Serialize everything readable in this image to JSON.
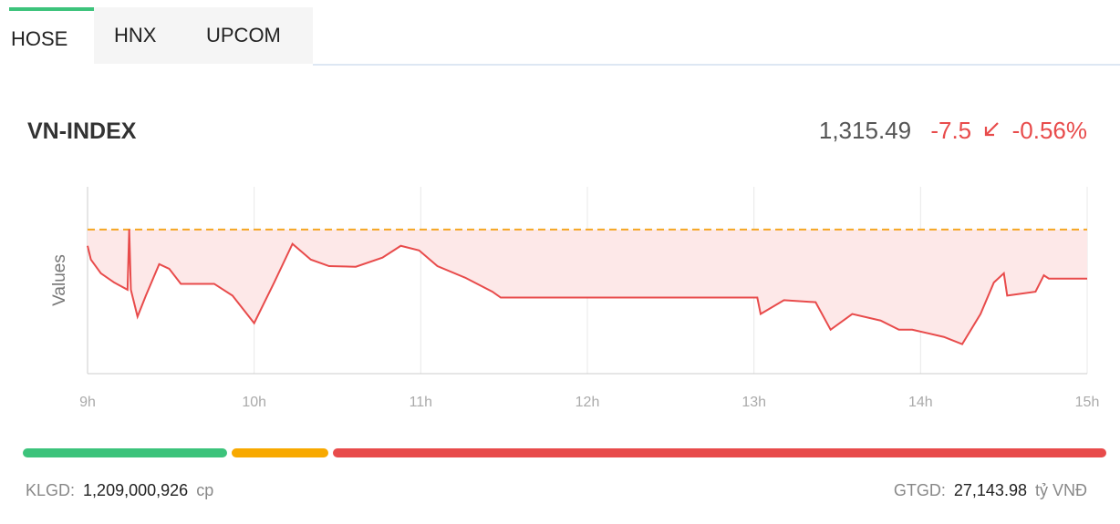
{
  "tabs": {
    "items": [
      "HOSE",
      "HNX",
      "UPCOM"
    ],
    "active": 0
  },
  "header": {
    "title": "VN-INDEX",
    "price": "1,315.49",
    "change": "-7.5",
    "change_percent": "-0.56%"
  },
  "chart_data": {
    "type": "area",
    "y_label": "Values",
    "x": [
      9.0,
      9.02,
      9.08,
      9.16,
      9.24,
      9.25,
      9.26,
      9.3,
      9.35,
      9.43,
      9.49,
      9.56,
      9.65,
      9.76,
      9.87,
      10.0,
      10.12,
      10.23,
      10.34,
      10.45,
      10.61,
      10.77,
      10.88,
      10.99,
      11.1,
      11.27,
      11.43,
      11.48,
      13.02,
      13.04,
      13.18,
      13.37,
      13.46,
      13.59,
      13.76,
      13.87,
      13.95,
      14.14,
      14.25,
      14.36,
      14.44,
      14.5,
      14.52,
      14.69,
      14.74,
      14.77,
      15.0
    ],
    "values": [
      1320.5,
      1318.4,
      1316.3,
      1314.9,
      1313.8,
      1323.0,
      1313.8,
      1309.7,
      1312.9,
      1317.7,
      1317.0,
      1314.7,
      1314.7,
      1314.7,
      1312.9,
      1308.7,
      1314.9,
      1320.8,
      1318.4,
      1317.4,
      1317.3,
      1318.7,
      1320.5,
      1319.8,
      1317.4,
      1315.6,
      1313.5,
      1312.6,
      1312.6,
      1310.1,
      1312.2,
      1311.9,
      1307.7,
      1310.1,
      1309.1,
      1307.7,
      1307.7,
      1306.6,
      1305.5,
      1310.1,
      1314.9,
      1316.3,
      1312.9,
      1313.5,
      1316.0,
      1315.5,
      1315.5
    ],
    "color": "#e84b4b",
    "fill_color": "#fde8e8",
    "reference": 1322.99,
    "reference_color": "#f5a623",
    "xlim": [
      9,
      15
    ],
    "ylim": [
      1301,
      1329.5
    ],
    "xticks": [
      {
        "value": 9,
        "label": "9h"
      },
      {
        "value": 10,
        "label": "10h"
      },
      {
        "value": 11,
        "label": "11h"
      },
      {
        "value": 12,
        "label": "12h"
      },
      {
        "value": 13,
        "label": "13h"
      },
      {
        "value": 14,
        "label": "14h"
      },
      {
        "value": 15,
        "label": "15h"
      }
    ],
    "grid": true
  },
  "breadth": [
    {
      "color": "#3cc37b",
      "value": 19
    },
    {
      "color": "#f8a900",
      "value": 9
    },
    {
      "color": "#e84b4b",
      "value": 72
    }
  ],
  "footer": {
    "volume_label": "KLGD:",
    "volume": "1,209,000,926",
    "volume_unit": "cp",
    "value_label": "GTGD:",
    "value": "27,143.98",
    "value_unit": "tỷ VNĐ"
  }
}
